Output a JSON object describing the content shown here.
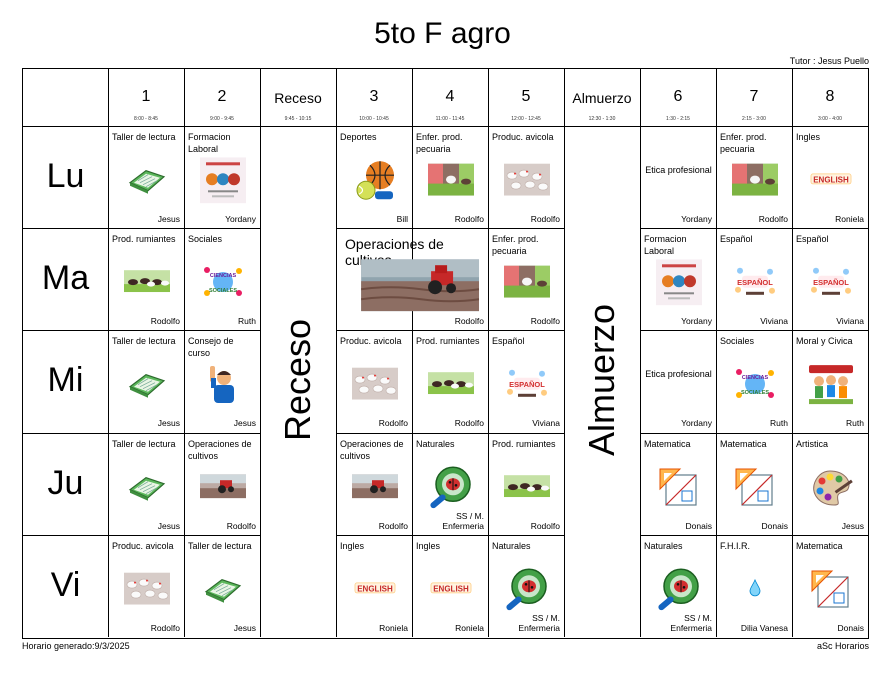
{
  "title": "5to F agro",
  "tutor": "Tutor : Jesus Puello",
  "footer": {
    "generated": "Horario generado:9/3/2025",
    "brand": "aSc Horarios"
  },
  "columns": [
    {
      "label": "1",
      "time": "8:00 - 8:45"
    },
    {
      "label": "2",
      "time": "9:00 - 9:45"
    },
    {
      "label": "Receso",
      "time": "9:45 - 10:15"
    },
    {
      "label": "3",
      "time": "10:00 - 10:45"
    },
    {
      "label": "4",
      "time": "11:00 - 11:45"
    },
    {
      "label": "5",
      "time": "12:00 - 12:45"
    },
    {
      "label": "Almuerzo",
      "time": "12:30 - 1:30"
    },
    {
      "label": "6",
      "time": "1:30 - 2:15"
    },
    {
      "label": "7",
      "time": "2:15 - 3:00"
    },
    {
      "label": "8",
      "time": "3:00 - 4:00"
    }
  ],
  "days": [
    "Lu",
    "Ma",
    "Mi",
    "Ju",
    "Vi"
  ],
  "breaks": {
    "receso": "Receso",
    "almuerzo": "Almuerzo"
  },
  "lessons": {
    "lu": {
      "p1": {
        "subject": "Taller de lectura",
        "teacher": "Jesus",
        "icon": "book-icon"
      },
      "p2": {
        "subject": "Formacion Laboral",
        "teacher": "Yordany",
        "icon": "training-poster-icon"
      },
      "p3": {
        "subject": "Deportes",
        "teacher": "Bill",
        "icon": "sports-balls-icon"
      },
      "p4": {
        "subject": "Enfer. prod. pecuaria",
        "teacher": "Rodolfo",
        "icon": "livestock-photo-icon"
      },
      "p5": {
        "subject": "Produc. avicola",
        "teacher": "Rodolfo",
        "icon": "poultry-photo-icon"
      },
      "p6": {
        "subject": "Etica profesional",
        "teacher": "Yordany",
        "icon": ""
      },
      "p7": {
        "subject": "Enfer. prod. pecuaria",
        "teacher": "Rodolfo",
        "icon": "livestock-photo-icon"
      },
      "p8": {
        "subject": "Ingles",
        "teacher": "Roniela",
        "icon": "english-icon"
      }
    },
    "ma": {
      "p1": {
        "subject": "Prod. rumiantes",
        "teacher": "Rodolfo",
        "icon": "cattle-photo-icon"
      },
      "p2": {
        "subject": "Sociales",
        "teacher": "Ruth",
        "icon": "social-sciences-icon"
      },
      "p34": {
        "subject": "Operaciones de cultivos",
        "teacher": "Rodolfo",
        "icon": "tractor-photo-icon"
      },
      "p5": {
        "subject": "Enfer. prod. pecuaria",
        "teacher": "Rodolfo",
        "icon": "livestock-photo-icon"
      },
      "p6": {
        "subject": "Formacion Laboral",
        "teacher": "Yordany",
        "icon": "training-poster-icon"
      },
      "p7": {
        "subject": "Español",
        "teacher": "Viviana",
        "icon": "spanish-icon"
      },
      "p8": {
        "subject": "Español",
        "teacher": "Viviana",
        "icon": "spanish-icon"
      }
    },
    "mi": {
      "p1": {
        "subject": "Taller de lectura",
        "teacher": "Jesus",
        "icon": "book-icon"
      },
      "p2": {
        "subject": "Consejo de curso",
        "teacher": "Jesus",
        "icon": "student-raising-hand-icon"
      },
      "p3": {
        "subject": "Produc. avicola",
        "teacher": "Rodolfo",
        "icon": "poultry-photo-icon"
      },
      "p4": {
        "subject": "Prod. rumiantes",
        "teacher": "Rodolfo",
        "icon": "cattle-photo-icon"
      },
      "p5": {
        "subject": "Español",
        "teacher": "Viviana",
        "icon": "spanish-icon"
      },
      "p6": {
        "subject": "Etica profesional",
        "teacher": "Yordany",
        "icon": ""
      },
      "p7": {
        "subject": "Sociales",
        "teacher": "Ruth",
        "icon": "social-sciences-icon"
      },
      "p8": {
        "subject": "Moral y Civica",
        "teacher": "Ruth",
        "icon": "kids-civics-icon"
      }
    },
    "ju": {
      "p1": {
        "subject": "Taller de lectura",
        "teacher": "Jesus",
        "icon": "book-icon"
      },
      "p2": {
        "subject": "Operaciones de cultivos",
        "teacher": "Rodolfo",
        "icon": "tractor-photo-icon"
      },
      "p3": {
        "subject": "Operaciones de cultivos",
        "teacher": "Rodolfo",
        "icon": "tractor-photo-icon"
      },
      "p4": {
        "subject": "Naturales",
        "teacher": "SS / M. Enfermeria",
        "icon": "ladybug-magnifier-icon"
      },
      "p5": {
        "subject": "Prod. rumiantes",
        "teacher": "Rodolfo",
        "icon": "cattle-photo-icon"
      },
      "p6": {
        "subject": "Matematica",
        "teacher": "Donais",
        "icon": "geometry-icon"
      },
      "p7": {
        "subject": "Matematica",
        "teacher": "Donais",
        "icon": "geometry-icon"
      },
      "p8": {
        "subject": "Artistica",
        "teacher": "Jesus",
        "icon": "paint-palette-icon"
      }
    },
    "vi": {
      "p1": {
        "subject": "Produc. avicola",
        "teacher": "Rodolfo",
        "icon": "poultry-photo-icon"
      },
      "p2": {
        "subject": "Taller de lectura",
        "teacher": "Jesus",
        "icon": "book-icon"
      },
      "p3": {
        "subject": "Ingles",
        "teacher": "Roniela",
        "icon": "english-icon"
      },
      "p4": {
        "subject": "Ingles",
        "teacher": "Roniela",
        "icon": "english-icon"
      },
      "p5": {
        "subject": "Naturales",
        "teacher": "SS / M. Enfermeria",
        "icon": "ladybug-magnifier-icon"
      },
      "p6": {
        "subject": "Naturales",
        "teacher": "SS / M. Enfermeria",
        "icon": "ladybug-magnifier-icon"
      },
      "p7": {
        "subject": "F.H.I.R.",
        "teacher": "Dilia Vanesa",
        "icon": "drop-icon"
      },
      "p8": {
        "subject": "Matematica",
        "teacher": "Donais",
        "icon": "geometry-icon"
      }
    }
  }
}
